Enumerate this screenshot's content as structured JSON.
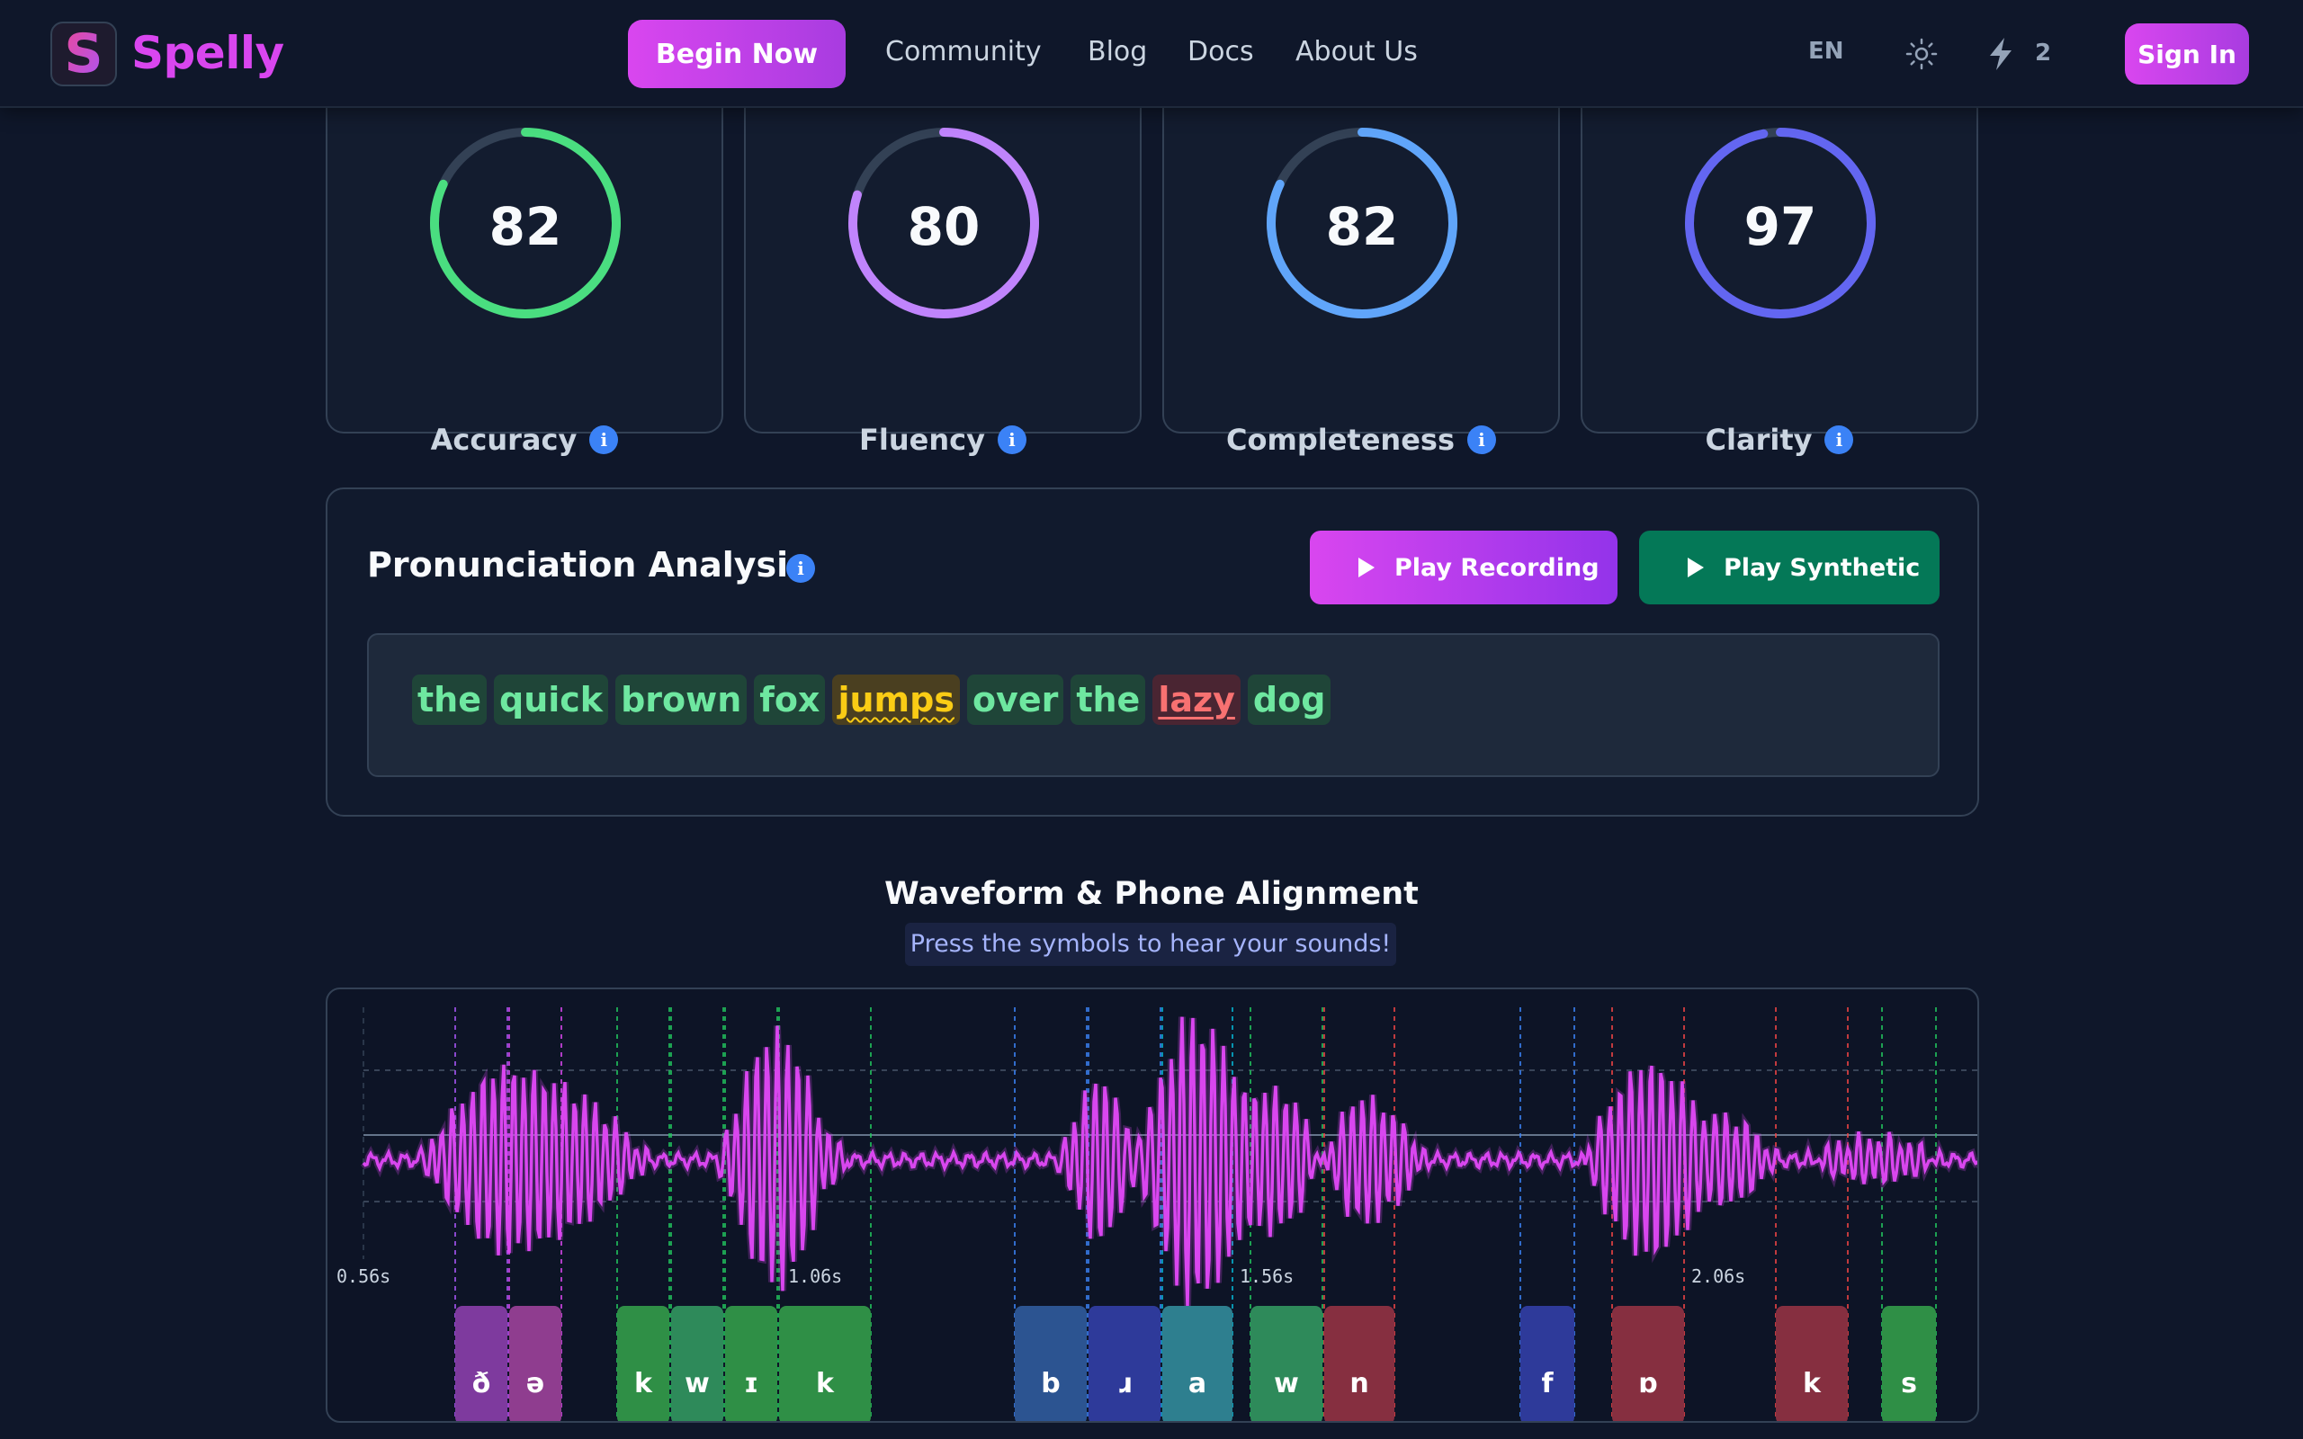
{
  "nav": {
    "logo_letter": "S",
    "brand": "Spelly",
    "begin_label": "Begin Now",
    "links": [
      "Community",
      "Blog",
      "Docs",
      "About Us"
    ],
    "lang": "EN",
    "bolt_count": "2",
    "signin_label": "Sign In"
  },
  "scores": [
    {
      "label": "Accuracy",
      "value": "82",
      "color": "#4ade80"
    },
    {
      "label": "Fluency",
      "value": "80",
      "color": "#c084fc"
    },
    {
      "label": "Completeness",
      "value": "82",
      "color": "#60a5fa"
    },
    {
      "label": "Clarity",
      "value": "97",
      "color": "#6366f1"
    }
  ],
  "analysis": {
    "title": "Pronunciation Analysis",
    "play_recording": "Play Recording",
    "play_synthetic": "Play Synthetic",
    "words": [
      {
        "text": "the",
        "status": "good"
      },
      {
        "text": "quick",
        "status": "good"
      },
      {
        "text": "brown",
        "status": "good"
      },
      {
        "text": "fox",
        "status": "good"
      },
      {
        "text": "jumps",
        "status": "mid"
      },
      {
        "text": "over",
        "status": "good"
      },
      {
        "text": "the",
        "status": "good"
      },
      {
        "text": "lazy",
        "status": "bad"
      },
      {
        "text": "dog",
        "status": "good"
      }
    ]
  },
  "waveform": {
    "title": "Waveform & Phone Alignment",
    "subtitle": "Press the symbols to hear your sounds!",
    "time_labels": [
      "0.56s",
      "1.06s",
      "1.56s",
      "2.06s"
    ],
    "phones": [
      {
        "symbol": "ð",
        "color": "#7e3a9e"
      },
      {
        "symbol": "ə",
        "color": "#8f3d8f"
      },
      {
        "symbol": "k",
        "color": "#2f8f46"
      },
      {
        "symbol": "w",
        "color": "#2e8a5a"
      },
      {
        "symbol": "ɪ",
        "color": "#2f8f46"
      },
      {
        "symbol": "k",
        "color": "#2f8f46"
      },
      {
        "symbol": "b",
        "color": "#2c5491"
      },
      {
        "symbol": "ɹ",
        "color": "#2e3a9a"
      },
      {
        "symbol": "a",
        "color": "#2e7f8f"
      },
      {
        "symbol": "w",
        "color": "#2e8a5a"
      },
      {
        "symbol": "n",
        "color": "#862f40"
      },
      {
        "symbol": "f",
        "color": "#2e3a9a"
      },
      {
        "symbol": "ɒ",
        "color": "#862f40"
      },
      {
        "symbol": "k",
        "color": "#862f40"
      },
      {
        "symbol": "s",
        "color": "#2f8f46"
      }
    ]
  }
}
